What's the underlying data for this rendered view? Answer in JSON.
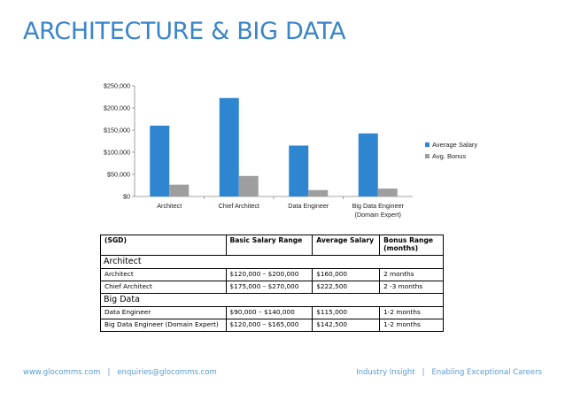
{
  "header": {
    "title": "ARCHITECTURE & BIG DATA"
  },
  "chart_data": {
    "type": "bar",
    "categories": [
      "Architect",
      "Chief Architect",
      "Data Engineer",
      "Big Data Engineer\n(Domain Expert)"
    ],
    "series": [
      {
        "name": "Average Salary",
        "values": [
          160000,
          222500,
          115000,
          142500
        ],
        "color": "#2e86d1"
      },
      {
        "name": "Avg. Bonus",
        "values": [
          26667,
          46354,
          14375,
          17813
        ],
        "color": "#9e9e9e"
      }
    ],
    "ylim": [
      0,
      250000
    ],
    "yticks": [
      "$0",
      "$50,000",
      "$100,000",
      "$150,000",
      "$200,000",
      "$250,000"
    ],
    "grid": false,
    "legend": "right"
  },
  "table": {
    "headers": [
      "(SGD)",
      "Basic Salary Range",
      "Average Salary",
      "Bonus Range (months)"
    ],
    "sections": [
      {
        "name": "Architect",
        "rows": [
          [
            "Architect",
            "$120,000 – $200,000",
            "$160,000",
            "2 months"
          ],
          [
            "Chief Architect",
            "$175,000 – $270,000",
            "$222,500",
            "2 -3  months"
          ]
        ]
      },
      {
        "name": "Big Data",
        "rows": [
          [
            "Data Engineer",
            "$90,000 – $140,000",
            "$115,000",
            "1-2 months"
          ],
          [
            "Big Data Engineer (Domain Expert)",
            "$120,000 – $165,000",
            "$142,500",
            "1-2 months"
          ]
        ]
      }
    ]
  },
  "footer": {
    "website": "www.glocomms.com",
    "separator": "|",
    "email": "enquiries@glocomms.com",
    "tagline_left": "Industry Insight",
    "tagline_right": "Enabling Exceptional Careers"
  }
}
